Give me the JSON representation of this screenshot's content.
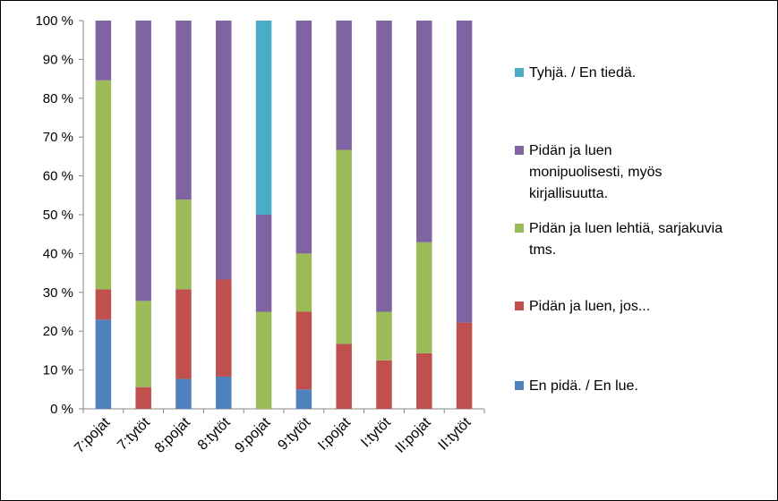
{
  "chart_data": {
    "type": "bar",
    "stacked": true,
    "percent": true,
    "title": "",
    "xlabel": "",
    "ylabel": "",
    "ylim": [
      0,
      100
    ],
    "yticks": [
      "0 %",
      "10 %",
      "20 %",
      "30 %",
      "40 %",
      "50 %",
      "60 %",
      "70 %",
      "80 %",
      "90 %",
      "100 %"
    ],
    "grid": false,
    "legend_position": "right",
    "categories": [
      "7:pojat",
      "7:tytöt",
      "8:pojat",
      "8:tytöt",
      "9:pojat",
      "9:tytöt",
      "I:pojat",
      "I:tytöt",
      "II:pojat",
      "II:tytöt"
    ],
    "series": [
      {
        "name": "En pidä. / En lue.",
        "color": "#4f81bd",
        "values": [
          23,
          0,
          7.7,
          8.3,
          0,
          5,
          0,
          0,
          0,
          0
        ]
      },
      {
        "name": "Pidän ja luen, jos...",
        "color": "#c0504d",
        "values": [
          7.8,
          5.6,
          23.1,
          25,
          0,
          20,
          16.7,
          12.5,
          14.3,
          22.2
        ]
      },
      {
        "name": "Pidän ja luen lehtiä, sarjakuvia tms.",
        "color": "#9bbb59",
        "values": [
          53.8,
          22.2,
          23.1,
          0,
          25,
          15,
          50,
          12.5,
          28.6,
          0
        ]
      },
      {
        "name": "Pidän ja luen monipuolisesti, myös kirjallisuutta.",
        "color": "#8064a2",
        "values": [
          15.4,
          72.2,
          46.1,
          66.7,
          25,
          60,
          33.3,
          75,
          57.1,
          77.8
        ]
      },
      {
        "name": "Tyhjä. / En tiedä.",
        "color": "#4bacc6",
        "values": [
          0,
          0,
          0,
          0,
          50,
          0,
          0,
          0,
          0,
          0
        ]
      }
    ],
    "legend_order": [
      "Tyhjä. / En tiedä.",
      "Pidän ja luen monipuolisesti, myös kirjallisuutta.",
      "Pidän ja luen lehtiä, sarjakuvia tms.",
      "Pidän ja luen, jos...",
      "En pidä. / En lue."
    ],
    "legend_lines": {
      "Tyhjä. / En tiedä.": [
        "Tyhjä. / En tiedä."
      ],
      "Pidän ja luen monipuolisesti, myös kirjallisuutta.": [
        "Pidän ja luen",
        "monipuolisesti, myös",
        "kirjallisuutta."
      ],
      "Pidän ja luen lehtiä, sarjakuvia tms.": [
        "Pidän ja luen lehtiä, sarjakuvia",
        "tms."
      ],
      "Pidän ja luen, jos...": [
        "Pidän ja luen, jos..."
      ],
      "En pidä. / En lue.": [
        "En pidä. / En lue."
      ]
    }
  }
}
